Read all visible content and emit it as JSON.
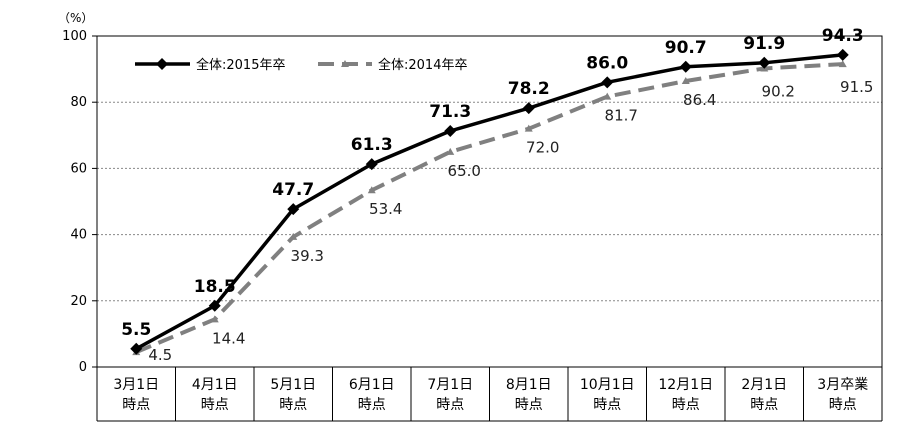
{
  "chart_data": {
    "type": "line",
    "ylabel": "（%）",
    "ylim": [
      0,
      100
    ],
    "yticks": [
      0,
      20,
      40,
      60,
      80,
      100
    ],
    "grid": true,
    "legend_position": "top-left",
    "categories": [
      [
        "3月1日",
        "時点"
      ],
      [
        "4月1日",
        "時点"
      ],
      [
        "5月1日",
        "時点"
      ],
      [
        "6月1日",
        "時点"
      ],
      [
        "7月1日",
        "時点"
      ],
      [
        "8月1日",
        "時点"
      ],
      [
        "10月1日",
        "時点"
      ],
      [
        "12月1日",
        "時点"
      ],
      [
        "2月1日",
        "時点"
      ],
      [
        "3月卒業",
        "時点"
      ]
    ],
    "series": [
      {
        "name": "全体:2015年卒",
        "values": [
          5.5,
          18.5,
          47.7,
          61.3,
          71.3,
          78.2,
          86.0,
          90.7,
          91.9,
          94.3
        ],
        "labels": [
          "5.5",
          "18.5",
          "47.7",
          "61.3",
          "71.3",
          "78.2",
          "86.0",
          "90.7",
          "91.9",
          "94.3"
        ],
        "color": "#000000",
        "style": "solid",
        "marker": "diamond"
      },
      {
        "name": "全体:2014年卒",
        "values": [
          4.5,
          14.4,
          39.3,
          53.4,
          65.0,
          72.0,
          81.7,
          86.4,
          90.2,
          91.5
        ],
        "labels": [
          "4.5",
          "14.4",
          "39.3",
          "53.4",
          "65.0",
          "72.0",
          "81.7",
          "86.4",
          "90.2",
          "91.5"
        ],
        "color": "#808080",
        "style": "dashed",
        "marker": "triangle"
      }
    ]
  }
}
